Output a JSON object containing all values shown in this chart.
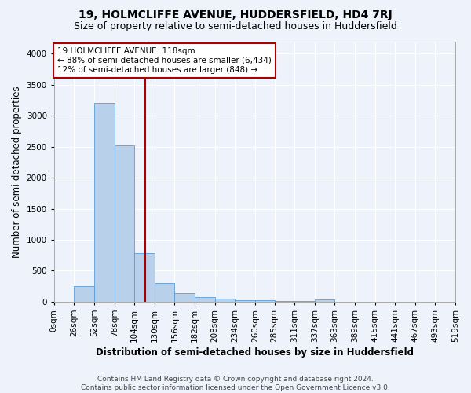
{
  "title": "19, HOLMCLIFFE AVENUE, HUDDERSFIELD, HD4 7RJ",
  "subtitle": "Size of property relative to semi-detached houses in Huddersfield",
  "xlabel": "Distribution of semi-detached houses by size in Huddersfield",
  "ylabel": "Number of semi-detached properties",
  "footer_line1": "Contains HM Land Registry data © Crown copyright and database right 2024.",
  "footer_line2": "Contains public sector information licensed under the Open Government Licence v3.0.",
  "bin_labels": [
    "0sqm",
    "26sqm",
    "52sqm",
    "78sqm",
    "104sqm",
    "130sqm",
    "156sqm",
    "182sqm",
    "208sqm",
    "234sqm",
    "260sqm",
    "285sqm",
    "311sqm",
    "337sqm",
    "363sqm",
    "389sqm",
    "415sqm",
    "441sqm",
    "467sqm",
    "493sqm",
    "519sqm"
  ],
  "bar_values": [
    0,
    250,
    3200,
    2520,
    780,
    300,
    140,
    80,
    45,
    30,
    20,
    12,
    8,
    35,
    0,
    0,
    0,
    0,
    0,
    0
  ],
  "bar_color": "#b8d0ea",
  "bar_edge_color": "#5b9bd5",
  "property_line_x": 118,
  "property_line_color": "#aa0000",
  "annotation_text": "19 HOLMCLIFFE AVENUE: 118sqm\n← 88% of semi-detached houses are smaller (6,434)\n12% of semi-detached houses are larger (848) →",
  "annotation_box_color": "#ffffff",
  "annotation_box_edge": "#aa0000",
  "ylim": [
    0,
    4200
  ],
  "xlim_min": 0,
  "xlim_max": 519,
  "bin_edges": [
    0,
    26,
    52,
    78,
    104,
    130,
    156,
    182,
    208,
    234,
    260,
    285,
    311,
    337,
    363,
    389,
    415,
    441,
    467,
    493,
    519
  ],
  "background_color": "#eef2fb",
  "grid_color": "#ffffff",
  "title_fontsize": 10,
  "subtitle_fontsize": 9,
  "axis_label_fontsize": 8.5,
  "tick_fontsize": 7.5,
  "annotation_fontsize": 7.5,
  "footer_fontsize": 6.5
}
